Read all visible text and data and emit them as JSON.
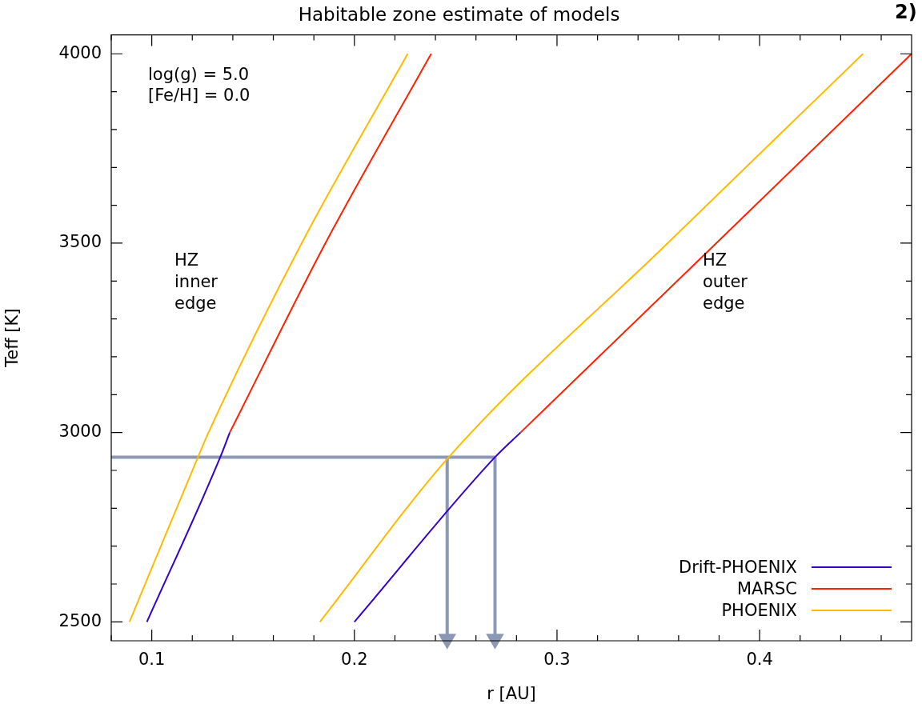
{
  "chart_data": {
    "type": "line",
    "title": "Habitable zone estimate of models",
    "xlabel": "r [AU]",
    "ylabel": "Teff [K]",
    "annotations": [
      "log(g) = 5.0",
      "[Fe/H] = 0.0",
      "HZ\ninner\nedge",
      "HZ\nouter\nedge",
      "2)"
    ],
    "xlim": [
      0.08,
      0.475
    ],
    "ylim": [
      2450,
      4050
    ],
    "xticks": [
      {
        "value": 0.08,
        "label": null
      },
      0.1,
      {
        "value": 0.12,
        "label": null
      },
      {
        "value": 0.14,
        "label": null
      },
      {
        "value": 0.16,
        "label": null
      },
      {
        "value": 0.18,
        "label": null
      },
      0.2,
      {
        "value": 0.22,
        "label": null
      },
      {
        "value": 0.24,
        "label": null
      },
      {
        "value": 0.26,
        "label": null
      },
      {
        "value": 0.28,
        "label": null
      },
      0.3,
      {
        "value": 0.32,
        "label": null
      },
      {
        "value": 0.34,
        "label": null
      },
      {
        "value": 0.36,
        "label": null
      },
      {
        "value": 0.38,
        "label": null
      },
      0.4,
      {
        "value": 0.42,
        "label": null
      },
      {
        "value": 0.44,
        "label": null
      },
      {
        "value": 0.46,
        "label": null
      }
    ],
    "yticks": [
      2500,
      {
        "value": 2600,
        "label": null
      },
      {
        "value": 2700,
        "label": null
      },
      {
        "value": 2800,
        "label": null
      },
      {
        "value": 2900,
        "label": null
      },
      3000,
      {
        "value": 3100,
        "label": null
      },
      {
        "value": 3200,
        "label": null
      },
      {
        "value": 3300,
        "label": null
      },
      {
        "value": 3400,
        "label": null
      },
      3500,
      {
        "value": 3600,
        "label": null
      },
      {
        "value": 3700,
        "label": null
      },
      {
        "value": 3800,
        "label": null
      },
      {
        "value": 3900,
        "label": null
      },
      4000
    ],
    "legend": "bottom right",
    "marker": "none",
    "line_style": "solid",
    "series": [
      {
        "name": "Drift-PHOENIX",
        "color": "#3300cc",
        "x": [
          0.0976,
          0.1338,
          0.1385
        ],
        "values": [
          2500,
          2935,
          3000
        ]
      },
      {
        "name": "MARSC",
        "color": "#ff2200",
        "x": [
          0.1385,
          0.1857,
          0.2379
        ],
        "values": [
          3000,
          3500,
          4000
        ]
      },
      {
        "name": "PHOENIX",
        "color": "#ffbb00",
        "x": [
          0.089,
          0.1228,
          0.128,
          0.174,
          0.2263
        ],
        "values": [
          2500,
          2935,
          3000,
          3500,
          4000
        ]
      },
      {
        "color": "#3300cc",
        "x": [
          0.2,
          0.2694,
          0.282
        ],
        "values": [
          2500,
          2935,
          3000
        ]
      },
      {
        "color": "#ff2200",
        "x": [
          0.282,
          0.3786,
          0.475
        ],
        "values": [
          3000,
          3500,
          4000
        ]
      },
      {
        "color": "#ffbb00",
        "x": [
          0.183,
          0.2466,
          0.3546,
          0.451
        ],
        "values": [
          2500,
          2935,
          3500,
          4000
        ]
      },
      {
        "color": "#8c99b4",
        "x": [
          0.08,
          0.2694
        ],
        "values": [
          2935,
          2935
        ]
      },
      {
        "color": "#8c99b4",
        "x": [
          0.2458,
          0.2458
        ],
        "values": [
          2935,
          2455
        ],
        "marker": "triangle"
      },
      {
        "color": "#8c99b4",
        "x": [
          0.2694,
          0.2694
        ],
        "values": [
          2935,
          2455
        ],
        "marker": "triangle"
      }
    ]
  }
}
